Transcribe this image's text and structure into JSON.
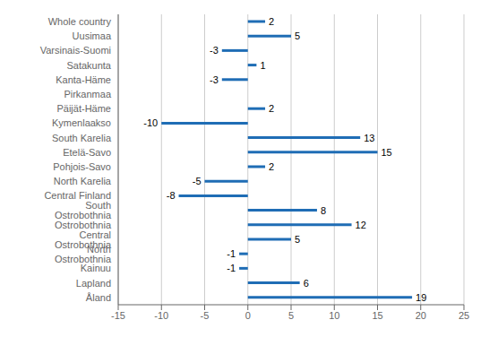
{
  "chart_data": {
    "type": "bar",
    "orientation": "horizontal",
    "categories": [
      "Whole country",
      "Uusimaa",
      "Varsinais-Suomi",
      "Satakunta",
      "Kanta-Häme",
      "Pirkanmaa",
      "Päijät-Häme",
      "Kymenlaakso",
      "South Karelia",
      "Etelä-Savo",
      "Pohjois-Savo",
      "North Karelia",
      "Central Finland",
      "South Ostrobothnia",
      "Ostrobothnia",
      "Central Ostrobothnia",
      "North Ostrobothnia",
      "Kainuu",
      "Lapland",
      "Åland"
    ],
    "values": [
      2,
      5,
      -3,
      1,
      -3,
      0,
      2,
      -10,
      13,
      15,
      2,
      -5,
      -8,
      8,
      12,
      5,
      -1,
      -1,
      6,
      19
    ],
    "color": "#1f6db5",
    "xlim": [
      -15,
      25
    ],
    "xticks": [
      -15,
      -10,
      -5,
      0,
      5,
      10,
      15,
      20,
      25
    ],
    "grid": true,
    "data_labels": true
  }
}
